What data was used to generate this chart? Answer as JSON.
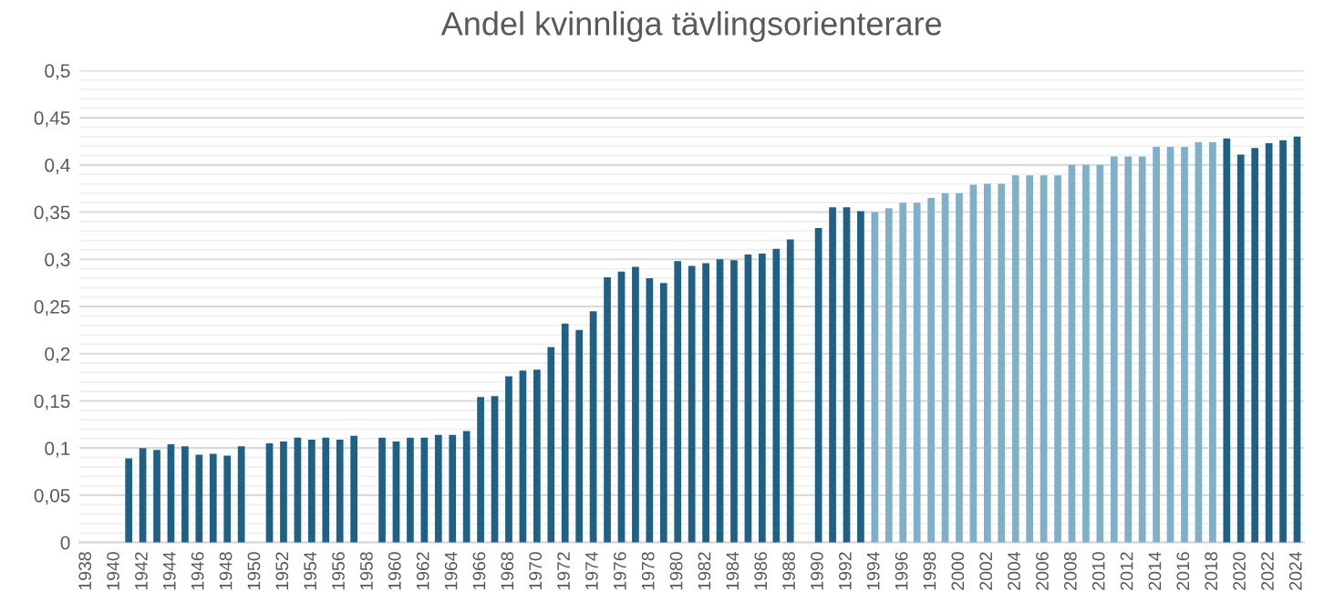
{
  "chart_data": {
    "type": "bar",
    "title": "Andel kvinnliga tävlingsorienterare",
    "categories": [
      "1938",
      null,
      "1940",
      null,
      "1942",
      null,
      "1944",
      null,
      "1946",
      null,
      "1948",
      null,
      "1950",
      null,
      "1952",
      null,
      "1954",
      null,
      "1956",
      null,
      "1958",
      null,
      "1960",
      null,
      "1962",
      null,
      "1964",
      null,
      "1966",
      null,
      "1968",
      null,
      "1970",
      null,
      "1972",
      null,
      "1974",
      null,
      "1976",
      null,
      "1978",
      null,
      "1980",
      null,
      "1982",
      null,
      "1984",
      null,
      "1986",
      null,
      "1988",
      null,
      "1990",
      null,
      "1992",
      null,
      "1994",
      null,
      "1996",
      null,
      "1998",
      null,
      "2000",
      null,
      "2002",
      null,
      "2004",
      null,
      "2006",
      null,
      "2008",
      null,
      "2010",
      null,
      "2012",
      null,
      "2014",
      null,
      "2016",
      null,
      "2018",
      null,
      "2020",
      null,
      "2022",
      null,
      "2024"
    ],
    "series": [
      {
        "color": "#1f6185",
        "values": [
          null,
          null,
          null,
          0.089,
          0.1,
          0.098,
          0.104,
          0.102,
          0.093,
          0.094,
          0.092,
          0.102,
          null,
          0.105,
          0.107,
          0.111,
          0.109,
          0.111,
          0.109,
          0.113,
          null,
          0.111,
          0.107,
          0.111,
          0.111,
          0.114,
          0.114,
          0.118,
          0.154,
          0.155,
          0.176,
          0.182,
          0.183,
          0.207,
          0.232,
          0.225,
          0.245,
          0.281,
          0.287,
          0.292,
          0.28,
          0.275,
          0.298,
          0.293,
          0.296,
          0.3,
          0.299,
          0.305,
          0.306,
          0.311,
          0.321,
          null,
          0.333,
          0.355,
          0.355,
          0.351,
          null,
          null,
          null,
          null,
          null,
          null,
          null,
          null,
          null,
          null,
          null,
          null,
          null,
          null,
          null,
          null,
          null,
          null,
          null,
          null,
          null,
          null,
          null,
          null,
          null,
          0.428,
          0.411,
          0.418,
          0.423,
          0.426,
          0.43
        ]
      },
      {
        "color": "#7fb0c8",
        "values": [
          null,
          null,
          null,
          null,
          null,
          null,
          null,
          null,
          null,
          null,
          null,
          null,
          null,
          null,
          null,
          null,
          null,
          null,
          null,
          null,
          null,
          null,
          null,
          null,
          null,
          null,
          null,
          null,
          null,
          null,
          null,
          null,
          null,
          null,
          null,
          null,
          null,
          null,
          null,
          null,
          null,
          null,
          null,
          null,
          null,
          null,
          null,
          null,
          null,
          null,
          null,
          null,
          null,
          null,
          null,
          null,
          0.35,
          0.354,
          0.36,
          0.36,
          0.365,
          0.37,
          0.37,
          0.379,
          0.38,
          0.38,
          0.389,
          0.389,
          0.389,
          0.389,
          0.4,
          0.4,
          0.4,
          0.409,
          0.409,
          0.409,
          0.419,
          0.419,
          0.419,
          0.424,
          0.424,
          null,
          null,
          null,
          null,
          null,
          null
        ]
      }
    ],
    "ylim": [
      0,
      0.5
    ],
    "yticks": [
      0,
      {
        "value": 0.05,
        "label": "0,05"
      },
      {
        "value": 0.1,
        "label": "0,1"
      },
      {
        "value": 0.15,
        "label": "0,15"
      },
      {
        "value": 0.2,
        "label": "0,2"
      },
      {
        "value": 0.25,
        "label": "0,25"
      },
      {
        "value": 0.3,
        "label": "0,3"
      },
      {
        "value": 0.35,
        "label": "0,35"
      },
      {
        "value": 0.4,
        "label": "0,4"
      },
      {
        "value": 0.45,
        "label": "0,45"
      },
      {
        "value": 0.5,
        "label": "0,5"
      }
    ],
    "grid": "y",
    "legend": false
  }
}
